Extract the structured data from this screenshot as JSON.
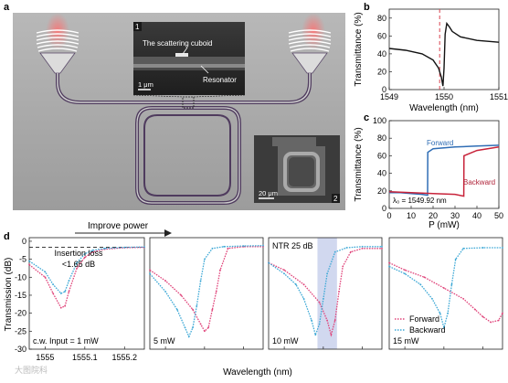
{
  "panel_a": {
    "label": "a",
    "inset1": {
      "number": "1",
      "cuboid_label": "The scattering cuboid",
      "resonator_label": "Resonator",
      "scale_bar": "1 μm"
    },
    "inset2": {
      "number": "2",
      "scale_bar": "20 μm"
    }
  },
  "panel_b": {
    "label": "b",
    "ylabel": "Transmittance (%)",
    "xlabel": "Wavelength (nm)",
    "xticks": [
      "1549",
      "1550",
      "1551"
    ],
    "yticks": [
      "0",
      "20",
      "40",
      "60",
      "80"
    ]
  },
  "panel_c": {
    "label": "c",
    "ylabel": "Transmittance (%)",
    "xlabel": "P (mW)",
    "xticks": [
      "0",
      "10",
      "20",
      "30",
      "40",
      "50"
    ],
    "yticks": [
      "0",
      "20",
      "40",
      "60",
      "80",
      "100"
    ],
    "forward_label": "Forward",
    "backward_label": "Backward",
    "lambda_label": "λ₀ = 1549.92 nm"
  },
  "panel_d": {
    "label": "d",
    "improve_power": "Improve power",
    "ylabel": "Transmission (dB)",
    "xlabel": "Wavelength (nm)",
    "yticks": [
      "0",
      "-5",
      "-10",
      "-15",
      "-20",
      "-25",
      "-30"
    ],
    "xticks": [
      "1555",
      "1555.1",
      "1555.2"
    ],
    "insertion_loss_line1": "Insertion loss",
    "insertion_loss_line2": "<1.65 dB",
    "ntr_label": "NTR 25 dB",
    "legend_forward": "Forward",
    "legend_backward": "Backward",
    "subpanels": [
      {
        "power_label": "c.w. Input = 1 mW"
      },
      {
        "power_label": "5 mW"
      },
      {
        "power_label": "10 mW"
      },
      {
        "power_label": "15 mW"
      }
    ]
  },
  "watermark": "大图院科",
  "colors": {
    "forward": "#e0457b",
    "backward": "#3fa9d6",
    "red": "#c8233a",
    "blue": "#2f6db5",
    "dashed_red": "#d9454f"
  },
  "chart_data": [
    {
      "type": "line",
      "panel": "b",
      "xlabel": "Wavelength (nm)",
      "ylabel": "Transmittance (%)",
      "xlim": [
        1549,
        1551
      ],
      "ylim": [
        0,
        90
      ],
      "series": [
        {
          "x": [
            1549.0,
            1549.3,
            1549.6,
            1549.8,
            1549.9,
            1549.95,
            1549.98,
            1550.0,
            1550.02,
            1550.05,
            1550.1,
            1550.15,
            1550.3,
            1550.6,
            1551.0
          ],
          "values": [
            46,
            44,
            40,
            33,
            24,
            14,
            4,
            24,
            62,
            74,
            70,
            65,
            59,
            55,
            53
          ]
        }
      ],
      "markers": [
        {
          "x": 1549.92,
          "style": "dashed"
        }
      ]
    },
    {
      "type": "line",
      "panel": "c",
      "xlabel": "P (mW)",
      "ylabel": "Transmittance (%)",
      "xlim": [
        0,
        50
      ],
      "ylim": [
        0,
        100
      ],
      "series": [
        {
          "name": "Forward",
          "x": [
            0,
            5,
            10,
            15,
            17.5,
            17.6,
            20,
            30,
            40,
            50
          ],
          "values": [
            18,
            18,
            17,
            16,
            15,
            64,
            68,
            70,
            71,
            72
          ]
        },
        {
          "name": "Backward",
          "x": [
            0,
            10,
            20,
            30,
            34,
            34.1,
            40,
            50
          ],
          "values": [
            19,
            18,
            17,
            16,
            14,
            60,
            66,
            70
          ]
        }
      ]
    },
    {
      "type": "scatter",
      "panel": "d",
      "xlabel": "Wavelength (nm)",
      "ylabel": "Transmission (dB)",
      "xlim": [
        1554.96,
        1555.25
      ],
      "ylim": [
        -30,
        1
      ],
      "subplots": [
        {
          "title": "c.w. Input = 1 mW",
          "series": [
            {
              "name": "Forward",
              "x": [
                1554.96,
                1555.0,
                1555.02,
                1555.04,
                1555.05,
                1555.06,
                1555.08,
                1555.1,
                1555.12,
                1555.15,
                1555.2,
                1555.25
              ],
              "values": [
                -6.5,
                -10,
                -14.5,
                -18.5,
                -18,
                -14,
                -7.5,
                -4.5,
                -3,
                -2.2,
                -1.8,
                -1.7
              ]
            },
            {
              "name": "Backward",
              "x": [
                1554.96,
                1555.0,
                1555.02,
                1555.04,
                1555.05,
                1555.06,
                1555.08,
                1555.1,
                1555.12,
                1555.15,
                1555.2,
                1555.25
              ],
              "values": [
                -5.5,
                -8.5,
                -12,
                -14.5,
                -14,
                -11,
                -6,
                -3.5,
                -2.5,
                -2,
                -1.7,
                -1.6
              ]
            }
          ]
        },
        {
          "title": "5 mW",
          "series": [
            {
              "name": "Forward",
              "x": [
                1554.96,
                1555.0,
                1555.04,
                1555.07,
                1555.09,
                1555.1,
                1555.11,
                1555.12,
                1555.13,
                1555.14,
                1555.16,
                1555.2,
                1555.25
              ],
              "values": [
                -8,
                -11,
                -15,
                -19,
                -23,
                -25,
                -24,
                -19,
                -14,
                -8,
                -2,
                -1.5,
                -1.5
              ]
            },
            {
              "name": "Backward",
              "x": [
                1554.96,
                1555.0,
                1555.03,
                1555.05,
                1555.06,
                1555.07,
                1555.08,
                1555.09,
                1555.1,
                1555.12,
                1555.15,
                1555.2,
                1555.25
              ],
              "values": [
                -9,
                -14,
                -19,
                -24,
                -26.5,
                -24,
                -18,
                -11,
                -5,
                -2,
                -1.5,
                -1.3,
                -1.2
              ]
            }
          ]
        },
        {
          "title": "10 mW",
          "series": [
            {
              "name": "Forward",
              "x": [
                1554.96,
                1555.0,
                1555.05,
                1555.09,
                1555.11,
                1555.12,
                1555.13,
                1555.14,
                1555.15,
                1555.17,
                1555.2,
                1555.25
              ],
              "values": [
                -6,
                -8,
                -12,
                -17,
                -22,
                -26,
                -22,
                -14,
                -7,
                -3,
                -2,
                -2
              ]
            },
            {
              "name": "Backward",
              "x": [
                1554.96,
                1555.0,
                1555.03,
                1555.05,
                1555.07,
                1555.08,
                1555.09,
                1555.1,
                1555.11,
                1555.13,
                1555.16,
                1555.2,
                1555.25
              ],
              "values": [
                -6,
                -9,
                -12,
                -16,
                -22,
                -26,
                -23,
                -16,
                -9,
                -3,
                -1.8,
                -1.5,
                -1.5
              ]
            }
          ]
        },
        {
          "title": "15 mW",
          "series": [
            {
              "name": "Forward",
              "x": [
                1554.96,
                1555.0,
                1555.05,
                1555.1,
                1555.15,
                1555.18,
                1555.2,
                1555.22,
                1555.24,
                1555.25
              ],
              "values": [
                -6,
                -8,
                -10,
                -13,
                -16,
                -19,
                -21,
                -22.5,
                -22,
                -20
              ]
            },
            {
              "name": "Backward",
              "x": [
                1554.96,
                1555.0,
                1555.04,
                1555.07,
                1555.09,
                1555.1,
                1555.11,
                1555.12,
                1555.13,
                1555.15,
                1555.2,
                1555.25
              ],
              "values": [
                -7,
                -9,
                -12,
                -16,
                -20,
                -24,
                -20,
                -12,
                -5,
                -2,
                -1.8,
                -1.8
              ]
            }
          ]
        }
      ]
    }
  ]
}
